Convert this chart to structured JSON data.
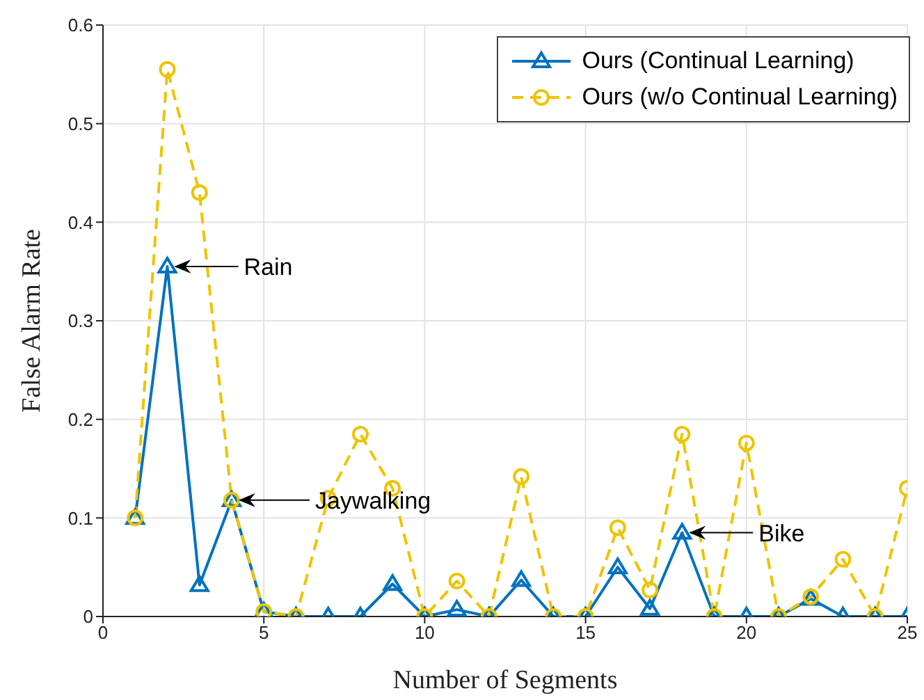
{
  "chart_data": {
    "type": "line",
    "xlabel": "Number of Segments",
    "ylabel": "False Alarm Rate",
    "x": [
      1,
      2,
      3,
      4,
      5,
      6,
      7,
      8,
      9,
      10,
      11,
      12,
      13,
      14,
      15,
      16,
      17,
      18,
      19,
      20,
      21,
      22,
      23,
      24,
      25
    ],
    "series": [
      {
        "name": "Ours (Continual Learning)",
        "color": "#0072bd",
        "marker": "triangle",
        "line_style": "solid",
        "values": [
          0.1,
          0.355,
          0.032,
          0.118,
          0.005,
          0,
          0,
          0,
          0.033,
          0,
          0.007,
          0,
          0.037,
          0,
          0,
          0.05,
          0.008,
          0.085,
          0,
          0,
          0,
          0.018,
          0,
          0,
          0
        ]
      },
      {
        "name": "Ours (w/o Continual Learning)",
        "color": "#edc400",
        "marker": "circle",
        "line_style": "dashed",
        "values": [
          0.1,
          0.555,
          0.43,
          0.118,
          0.005,
          0,
          0.12,
          0.185,
          0.13,
          0,
          0.036,
          0,
          0.142,
          0,
          0,
          0.09,
          0.027,
          0.185,
          0,
          0.176,
          0,
          0.02,
          0.058,
          0,
          0.13
        ]
      }
    ],
    "xlim": [
      0,
      25
    ],
    "xticks": [
      0,
      5,
      10,
      15,
      20,
      25
    ],
    "ylim": [
      0,
      0.6
    ],
    "yticks": [
      0,
      0.1,
      0.2,
      0.3,
      0.4,
      0.5,
      0.6
    ],
    "grid": true,
    "legend": "top right",
    "annotations": [
      {
        "text": "Rain",
        "x": 2,
        "y": 0.355
      },
      {
        "text": "Jaywalking",
        "x": 4,
        "y": 0.118
      },
      {
        "text": "Bike",
        "x": 18,
        "y": 0.085
      }
    ]
  }
}
